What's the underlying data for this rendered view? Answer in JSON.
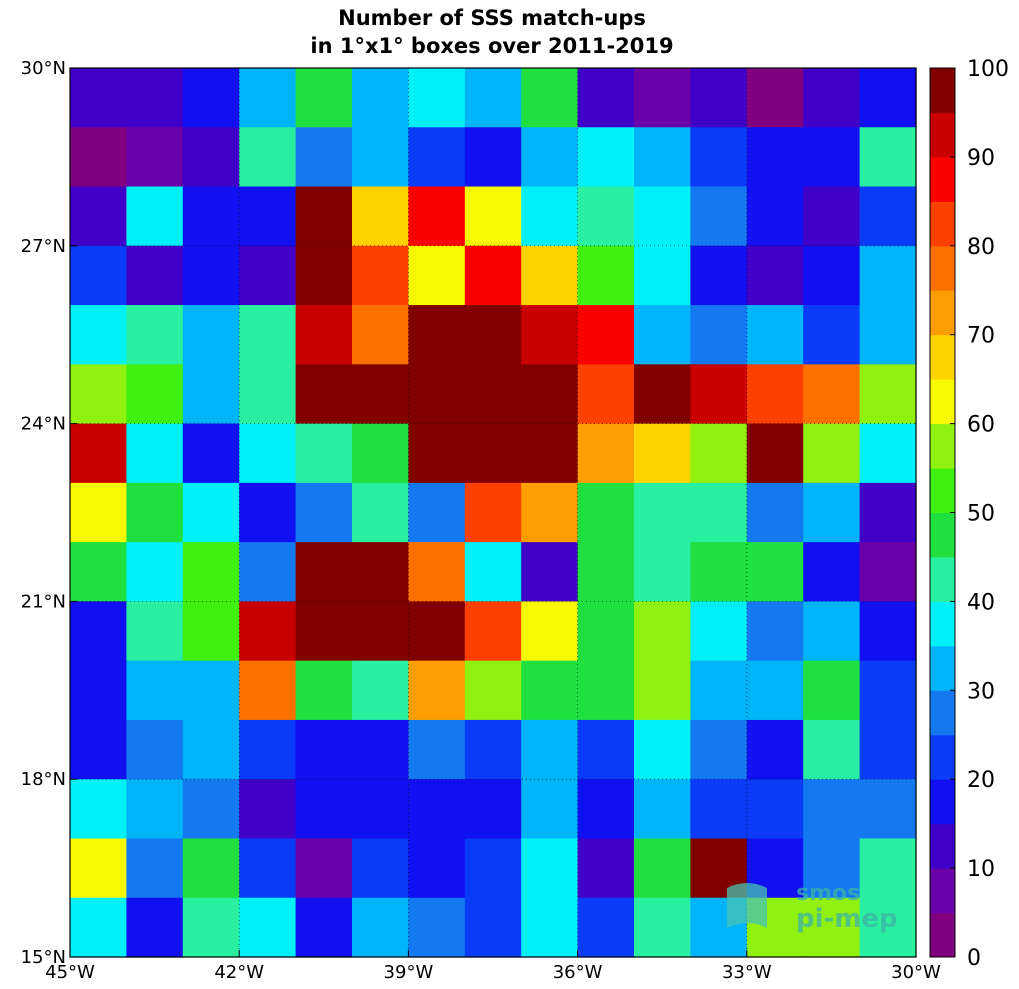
{
  "chart_data": {
    "type": "heatmap",
    "title": [
      "Number of SSS match-ups",
      "in 1°x1° boxes over 2011-2019"
    ],
    "x_tick_labels": [
      "45°W",
      "42°W",
      "39°W",
      "36°W",
      "33°W",
      "30°W"
    ],
    "x_tick_values": [
      -45,
      -42,
      -39,
      -36,
      -33,
      -30
    ],
    "y_tick_labels": [
      "30°N",
      "27°N",
      "24°N",
      "21°N",
      "18°N",
      "15°N"
    ],
    "y_tick_values": [
      30,
      27,
      24,
      21,
      18,
      15
    ],
    "xlim": [
      -45,
      -30
    ],
    "ylim": [
      15,
      30
    ],
    "grid": true,
    "colorbar": {
      "ticks": [
        "0",
        "10",
        "20",
        "30",
        "40",
        "50",
        "60",
        "70",
        "80",
        "90",
        "100"
      ],
      "range": [
        0,
        100
      ],
      "levels": 20,
      "placement": "right",
      "colors": [
        "#800080",
        "#6a00a8",
        "#4000c8",
        "#1010f0",
        "#0a3cf8",
        "#1478f0",
        "#00b4f8",
        "#00f0f8",
        "#28f0a0",
        "#20e040",
        "#40f010",
        "#90f010",
        "#f8f800",
        "#fcd200",
        "#fc9e00",
        "#fc7000",
        "#fc4000",
        "#fc0000",
        "#c80000",
        "#800000"
      ]
    },
    "row_order": "north_to_south",
    "col_order": "west_to_east",
    "values": [
      [
        12,
        12,
        17,
        32,
        47,
        32,
        37,
        32,
        47,
        12,
        7,
        12,
        2,
        12,
        17
      ],
      [
        2,
        7,
        12,
        42,
        27,
        32,
        22,
        17,
        32,
        37,
        32,
        22,
        17,
        17,
        42
      ],
      [
        12,
        37,
        17,
        17,
        97,
        67,
        87,
        62,
        37,
        42,
        37,
        27,
        17,
        12,
        22
      ],
      [
        22,
        12,
        17,
        12,
        97,
        82,
        62,
        87,
        67,
        52,
        37,
        17,
        12,
        17,
        32
      ],
      [
        37,
        42,
        32,
        42,
        92,
        77,
        97,
        97,
        92,
        87,
        32,
        27,
        32,
        22,
        32
      ],
      [
        57,
        52,
        32,
        42,
        97,
        97,
        97,
        97,
        97,
        82,
        97,
        92,
        82,
        77,
        57
      ],
      [
        92,
        37,
        17,
        37,
        42,
        47,
        97,
        97,
        97,
        72,
        67,
        57,
        97,
        57,
        37
      ],
      [
        62,
        47,
        37,
        17,
        27,
        42,
        27,
        82,
        72,
        47,
        42,
        42,
        27,
        32,
        12
      ],
      [
        47,
        37,
        52,
        27,
        97,
        97,
        77,
        37,
        12,
        47,
        42,
        47,
        47,
        17,
        7
      ],
      [
        17,
        42,
        52,
        92,
        97,
        97,
        97,
        82,
        62,
        47,
        57,
        37,
        27,
        32,
        17
      ],
      [
        17,
        32,
        32,
        77,
        47,
        42,
        72,
        57,
        47,
        47,
        57,
        32,
        32,
        47,
        22
      ],
      [
        17,
        27,
        32,
        22,
        17,
        17,
        27,
        22,
        32,
        22,
        37,
        27,
        17,
        42,
        22
      ],
      [
        37,
        32,
        27,
        12,
        17,
        17,
        17,
        17,
        32,
        17,
        32,
        22,
        22,
        27,
        27
      ],
      [
        62,
        27,
        47,
        22,
        7,
        22,
        17,
        22,
        37,
        12,
        47,
        97,
        17,
        27,
        42
      ],
      [
        37,
        17,
        42,
        37,
        17,
        32,
        27,
        22,
        37,
        22,
        42,
        32,
        57,
        57,
        42
      ]
    ]
  },
  "watermark": {
    "line1": "smos",
    "line2": "pi-mep"
  }
}
